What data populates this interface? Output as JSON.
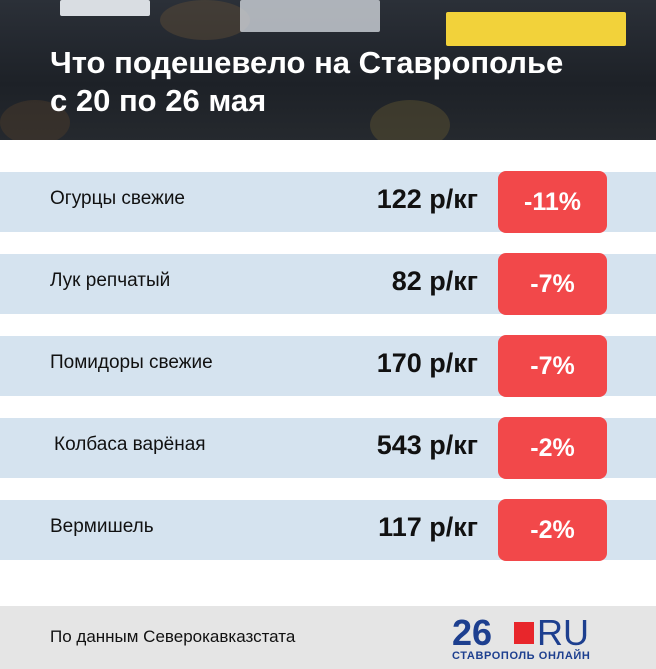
{
  "header": {
    "title_lines": [
      "Что подешевело на Ставрополье",
      "с 20 по 26 мая"
    ]
  },
  "table": {
    "rows": [
      [
        "Огурцы свежие",
        "122 р/кг",
        "-11%"
      ],
      [
        "Лук репчатый",
        "82 р/кг",
        "-7%"
      ],
      [
        "Помидоры свежие",
        "170 р/кг",
        "-7%"
      ],
      [
        "Колбаса варёная",
        "543 р/кг",
        "-2%"
      ],
      [
        "Вермишель",
        "117 р/кг",
        "-2%"
      ]
    ]
  },
  "footer": {
    "source": "По данным Северокавказстата",
    "logo": {
      "number": "26",
      "suffix": "RU",
      "tagline": "СТАВРОПОЛЬ ОНЛАЙН"
    }
  }
}
